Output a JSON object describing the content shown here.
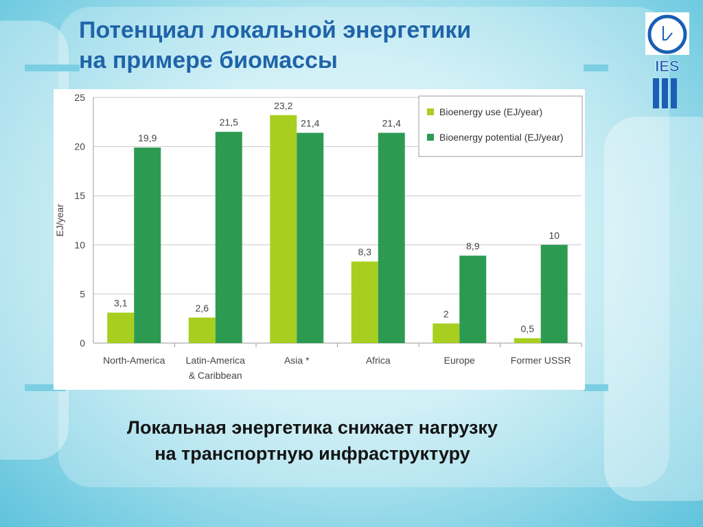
{
  "slide": {
    "title_line1": "Потенциал локальной энергетики",
    "title_line2": "на примере биомассы",
    "caption_line1": "Локальная энергетика снижает нагрузку",
    "caption_line2": "на транспортную инфраструктуру",
    "logo_text": "IES",
    "colors": {
      "title": "#1f64a8",
      "use": "#a8cf1f",
      "potential": "#2d9a52",
      "logo": "#1a5fb4"
    }
  },
  "chart_data": {
    "type": "bar",
    "title": "",
    "xlabel": "",
    "ylabel": "EJ/year",
    "ylim": [
      0,
      25
    ],
    "yticks": [
      0,
      5,
      10,
      15,
      20,
      25
    ],
    "grid": true,
    "legend_position": "top-right",
    "categories": [
      [
        "North-America"
      ],
      [
        "Latin-America",
        "& Caribbean"
      ],
      [
        "Asia *"
      ],
      [
        "Africa"
      ],
      [
        "Europe"
      ],
      [
        "Former USSR"
      ]
    ],
    "series": [
      {
        "name": "Bioenergy use (EJ/year)",
        "color": "#a8cf1f",
        "values": [
          3.1,
          2.6,
          23.2,
          8.3,
          2,
          0.5
        ],
        "labels": [
          "3,1",
          "2,6",
          "23,2",
          "8,3",
          "2",
          "0,5"
        ]
      },
      {
        "name": "Bioenergy potential (EJ/year)",
        "color": "#2d9a52",
        "values": [
          19.9,
          21.5,
          21.4,
          21.4,
          8.9,
          10
        ],
        "labels": [
          "19,9",
          "21,5",
          "21,4",
          "21,4",
          "8,9",
          "10"
        ]
      }
    ]
  }
}
